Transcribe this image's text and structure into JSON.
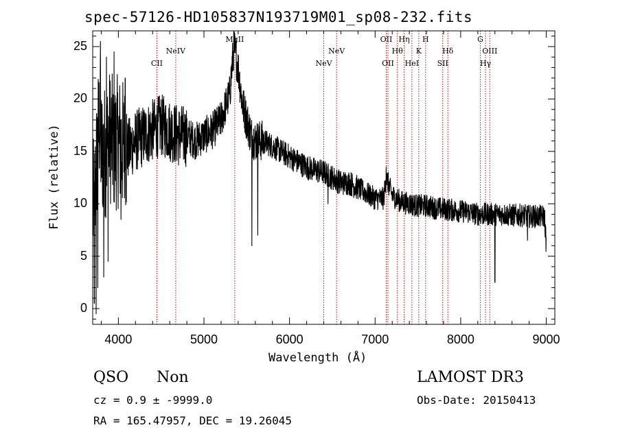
{
  "header": {
    "title": "spec-57126-HD105837N193719M01_sp08-232.fits"
  },
  "info": {
    "class": "QSO",
    "subclass": "Non",
    "survey": "LAMOST DR3",
    "cz": "cz = 0.9 ± -9999.0",
    "obs_date": "Obs-Date: 20150413",
    "coords": "RA = 165.47957, DEC =  19.26045"
  },
  "chart_data": {
    "type": "line",
    "title": "spec-57126-HD105837N193719M01_sp08-232.fits",
    "xlabel": "Wavelength (Å)",
    "ylabel": "Flux (relative)",
    "xlim": [
      3700,
      9100
    ],
    "ylim": [
      -1.5,
      26.5
    ],
    "xticks": [
      4000,
      5000,
      6000,
      7000,
      8000,
      9000
    ],
    "yticks": [
      0,
      5,
      10,
      15,
      20,
      25
    ],
    "line_color": "#000000",
    "marker_color": "#cc0000",
    "series": [
      {
        "x": [
          3700,
          3720,
          3740,
          3760,
          3780,
          3800,
          3850,
          3900,
          3950,
          4000,
          4100,
          4200,
          4300,
          4400,
          4500,
          4600,
          4700,
          4800,
          4900,
          5000,
          5100,
          5200,
          5300,
          5350,
          5400,
          5450,
          5500,
          5550,
          5600,
          5700,
          5800,
          5900,
          6000,
          6100,
          6200,
          6300,
          6400,
          6500,
          6600,
          6700,
          6800,
          6900,
          7000,
          7100,
          7130,
          7200,
          7300,
          7400,
          7500,
          7600,
          7700,
          7800,
          7900,
          8000,
          8100,
          8200,
          8300,
          8400,
          8500,
          8600,
          8700,
          8800,
          8900,
          8980,
          9000
        ],
        "y": [
          9.5,
          10.0,
          13.0,
          16.0,
          18.0,
          15.0,
          15.0,
          16.5,
          15.5,
          16.0,
          15.0,
          16.0,
          16.5,
          17.0,
          17.5,
          17.0,
          16.5,
          16.5,
          16.0,
          16.5,
          17.0,
          18.0,
          20.5,
          25.0,
          23.0,
          19.5,
          18.0,
          16.5,
          16.0,
          16.0,
          15.5,
          15.0,
          14.5,
          14.0,
          13.5,
          13.2,
          13.0,
          12.5,
          12.0,
          12.0,
          11.5,
          11.0,
          10.5,
          10.5,
          12.5,
          10.8,
          10.2,
          10.0,
          9.8,
          9.8,
          9.6,
          9.5,
          9.4,
          9.3,
          9.2,
          9.0,
          9.0,
          9.0,
          9.0,
          8.9,
          8.9,
          8.8,
          8.8,
          8.8,
          6.0
        ]
      }
    ],
    "spikes": [
      {
        "x": 3720,
        "y": 0.5
      },
      {
        "x": 3740,
        "y": -0.5
      },
      {
        "x": 3760,
        "y": 2.0
      },
      {
        "x": 3790,
        "y": 25.5
      },
      {
        "x": 3830,
        "y": 3.0
      },
      {
        "x": 3860,
        "y": 24.0
      },
      {
        "x": 3880,
        "y": 4.5
      },
      {
        "x": 3950,
        "y": 24.5
      },
      {
        "x": 4030,
        "y": 8.5
      },
      {
        "x": 4080,
        "y": 22.0
      },
      {
        "x": 5560,
        "y": 6.0
      },
      {
        "x": 5630,
        "y": 7.0
      },
      {
        "x": 6450,
        "y": 10.0
      },
      {
        "x": 7130,
        "y": 13.5
      },
      {
        "x": 8400,
        "y": 2.5
      },
      {
        "x": 8780,
        "y": 6.5
      }
    ],
    "emission_lines": [
      {
        "x": 4450,
        "label": "CII",
        "row": 1
      },
      {
        "x": 4670,
        "label": "NeIV",
        "row": 0
      },
      {
        "x": 5360,
        "label": "MgII",
        "row": -1
      },
      {
        "x": 6400,
        "label": "NeV",
        "row": 1
      },
      {
        "x": 6550,
        "label": "NeV",
        "row": 0
      },
      {
        "x": 7130,
        "label": "OII",
        "row": -1
      },
      {
        "x": 7150,
        "label": "OII",
        "row": 1
      },
      {
        "x": 7260,
        "label": "Hθ",
        "row": 0
      },
      {
        "x": 7340,
        "label": "Hη",
        "row": -1
      },
      {
        "x": 7430,
        "label": "HeI",
        "row": 1
      },
      {
        "x": 7510,
        "label": "K",
        "row": 0
      },
      {
        "x": 7590,
        "label": "H",
        "row": -1
      },
      {
        "x": 7790,
        "label": "SII",
        "row": 1
      },
      {
        "x": 7850,
        "label": "Hδ",
        "row": 0
      },
      {
        "x": 8230,
        "label": "G",
        "row": -1
      },
      {
        "x": 8290,
        "label": "Hγ",
        "row": 1
      },
      {
        "x": 8340,
        "label": "OIII",
        "row": 0
      }
    ]
  }
}
